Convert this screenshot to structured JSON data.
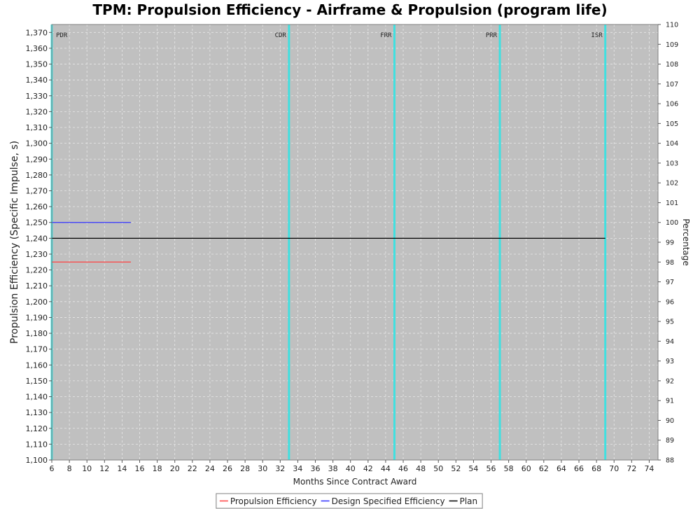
{
  "chart_data": {
    "type": "line",
    "title": "TPM: Propulsion Efficiency - Airframe & Propulsion (program life)",
    "xlabel": "Months Since Contract Award",
    "ylabel": "Propulsion Efficiency (Specific Impulse, s)",
    "y2label": "Percentage",
    "xlim": [
      6,
      75
    ],
    "ylim": [
      1100,
      1375
    ],
    "y2lim": [
      88,
      110
    ],
    "x_ticks": [
      6,
      8,
      10,
      12,
      14,
      16,
      18,
      20,
      22,
      24,
      26,
      28,
      30,
      32,
      34,
      36,
      38,
      40,
      42,
      44,
      46,
      48,
      50,
      52,
      54,
      56,
      58,
      60,
      62,
      64,
      66,
      68,
      70,
      72,
      74
    ],
    "y_ticks": [
      1100,
      1110,
      1120,
      1130,
      1140,
      1150,
      1160,
      1170,
      1180,
      1190,
      1200,
      1210,
      1220,
      1230,
      1240,
      1250,
      1260,
      1270,
      1280,
      1290,
      1300,
      1310,
      1320,
      1330,
      1340,
      1350,
      1360,
      1370
    ],
    "y_tick_labels": [
      "1,100",
      "1,110",
      "1,120",
      "1,130",
      "1,140",
      "1,150",
      "1,160",
      "1,170",
      "1,180",
      "1,190",
      "1,200",
      "1,210",
      "1,220",
      "1,230",
      "1,240",
      "1,250",
      "1,260",
      "1,270",
      "1,280",
      "1,290",
      "1,300",
      "1,310",
      "1,320",
      "1,330",
      "1,340",
      "1,350",
      "1,360",
      "1,370"
    ],
    "y2_ticks": [
      88,
      89,
      90,
      91,
      92,
      93,
      94,
      95,
      96,
      97,
      98,
      99,
      100,
      101,
      102,
      103,
      104,
      105,
      106,
      107,
      108,
      109,
      110
    ],
    "grid": true,
    "legend_position": "bottom",
    "series": [
      {
        "name": "Propulsion Efficiency",
        "color": "#ff4040",
        "x": [
          6,
          15
        ],
        "y": [
          1225,
          1225
        ]
      },
      {
        "name": "Design Specified Efficiency",
        "color": "#3030ff",
        "x": [
          6,
          15
        ],
        "y": [
          1250,
          1250
        ]
      },
      {
        "name": "Plan",
        "color": "#000000",
        "x": [
          6,
          69
        ],
        "y": [
          1240,
          1240
        ]
      }
    ],
    "milestones": [
      {
        "label": "PDR",
        "x": 6
      },
      {
        "label": "CDR",
        "x": 33
      },
      {
        "label": "FRR",
        "x": 45
      },
      {
        "label": "PRR",
        "x": 57
      },
      {
        "label": "ISR",
        "x": 69
      }
    ],
    "colors": {
      "plot_background": "#c0c0c0",
      "milestone_line": "#40e0e0",
      "grid": "#e8e8e8"
    }
  }
}
